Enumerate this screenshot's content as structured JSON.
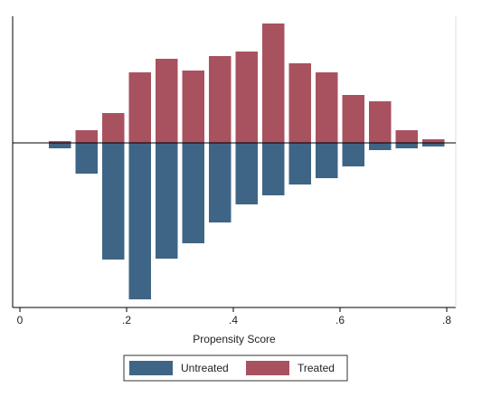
{
  "chart_data": {
    "type": "histogram",
    "xlabel": "Propensity Score",
    "bins": [
      0.05,
      0.1,
      0.15,
      0.2,
      0.25,
      0.3,
      0.35,
      0.4,
      0.45,
      0.5,
      0.55,
      0.6,
      0.65,
      0.7,
      0.75,
      0.8
    ],
    "series": [
      {
        "name": "Untreated",
        "color": "#3f6586",
        "values": [
          -6,
          -34,
          -129,
          -173,
          -128,
          -111,
          -88,
          -68,
          -58,
          -46,
          -39,
          -26,
          -8,
          -6,
          -4
        ]
      },
      {
        "name": "Treated",
        "color": "#a9525f",
        "values": [
          2,
          14,
          33,
          78,
          93,
          80,
          96,
          101,
          132,
          88,
          78,
          53,
          46,
          14,
          4
        ]
      }
    ],
    "xlim": [
      0,
      0.8
    ],
    "xticks": [
      0,
      {
        "value": 0.2,
        "label": ".2"
      },
      {
        "value": 0.4,
        "label": ".4"
      },
      {
        "value": 0.6,
        "label": ".6"
      },
      {
        "value": 0.8,
        "label": ".8"
      }
    ],
    "ylim": [
      -182,
      140
    ],
    "legend": "bottom"
  }
}
